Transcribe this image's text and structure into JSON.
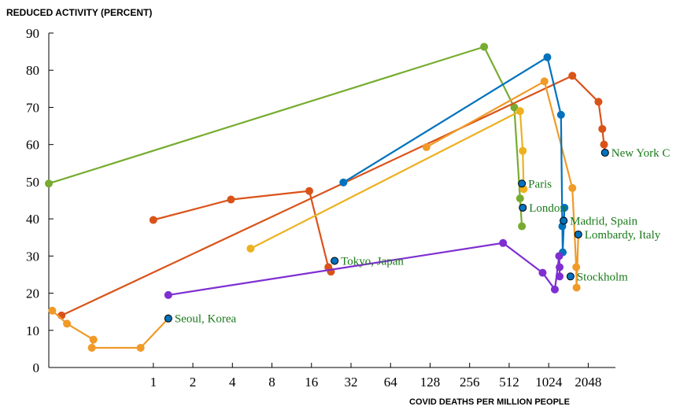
{
  "chart_data": {
    "type": "line",
    "ylabel": "REDUCED ACTIVITY (PERCENT)",
    "xlabel": "COVID DEATHS PER MILLION PEOPLE",
    "x_scale": "log2",
    "xlim": [
      0.16,
      3300
    ],
    "ylim": [
      0,
      90
    ],
    "x_ticks": [
      1,
      2,
      4,
      8,
      16,
      32,
      64,
      128,
      256,
      512,
      1024,
      2048
    ],
    "x_tick_labels": [
      "1",
      "2",
      "4",
      "8",
      "16",
      "32",
      "64",
      "128",
      "256",
      "512",
      "1024",
      "2048"
    ],
    "y_ticks": [
      0,
      10,
      20,
      30,
      40,
      50,
      60,
      70,
      80,
      90
    ],
    "y_tick_labels": [
      "0",
      "10",
      "20",
      "30",
      "40",
      "50",
      "60",
      "70",
      "80",
      "90"
    ],
    "series": [
      {
        "color": "#77ac30",
        "points": [
          [
            0.16,
            49.5
          ],
          [
            330,
            86.3
          ],
          [
            560,
            70
          ],
          [
            620,
            45.5
          ],
          [
            640,
            38
          ]
        ]
      },
      {
        "color": "#d95319",
        "points": [
          [
            1,
            39.7
          ],
          [
            3.9,
            45.2
          ],
          [
            15.4,
            47.5
          ],
          [
            21.5,
            27
          ],
          [
            22.5,
            25.8
          ]
        ]
      },
      {
        "name": "New York City",
        "color": "#d95319",
        "points": [
          [
            0.2,
            14
          ],
          [
            1550,
            78.5
          ],
          [
            2450,
            71.5
          ],
          [
            2620,
            64.2
          ],
          [
            2700,
            60
          ],
          [
            2750,
            57.8
          ]
        ]
      },
      {
        "name": "Paris",
        "color": "#edb120",
        "points": [
          [
            5.5,
            32
          ],
          [
            620,
            69
          ],
          [
            650,
            58.3
          ],
          [
            660,
            48
          ],
          [
            640,
            49.5
          ]
        ]
      },
      {
        "name": "Lombardy, Italy",
        "color": "#f09a28",
        "points": [
          [
            120,
            59.3
          ],
          [
            950,
            77
          ],
          [
            1550,
            48.3
          ],
          [
            1660,
            27
          ],
          [
            1670,
            21.5
          ],
          [
            1720,
            35.8
          ]
        ]
      },
      {
        "name": "London",
        "color": "#0072bd",
        "points": [
          [
            28,
            49.8
          ],
          [
            1000,
            83.5
          ],
          [
            1270,
            68
          ],
          [
            1300,
            38
          ],
          [
            1310,
            31
          ],
          [
            1350,
            43
          ]
        ]
      },
      {
        "name": "Madrid, Spain",
        "color": "#0072bd",
        "points": [
          [
            1330,
            39.5
          ]
        ]
      },
      {
        "name": "Stockholm",
        "color": "#7e2fd1",
        "points": [
          [
            1.3,
            19.5
          ],
          [
            460,
            33.5
          ],
          [
            920,
            25.5
          ],
          [
            1140,
            21
          ],
          [
            1230,
            30
          ],
          [
            1240,
            27
          ],
          [
            1240,
            24.5
          ]
        ]
      },
      {
        "name": "Tokyo, Japan",
        "color": "#edb120",
        "points": [
          [
            24,
            28.7
          ]
        ]
      },
      {
        "name": "Seoul, Korea",
        "color": "#f09a28",
        "points": [
          [
            0.17,
            15.3
          ],
          [
            0.22,
            11.8
          ],
          [
            0.35,
            7.5
          ],
          [
            0.34,
            5.3
          ],
          [
            0.8,
            5.3
          ],
          [
            1.3,
            13.2
          ]
        ]
      }
    ]
  },
  "annotations": [
    {
      "id": "nyc",
      "label": "New York C",
      "x": 2750,
      "y": 57.8
    },
    {
      "id": "paris",
      "label": "Paris",
      "x": 640,
      "y": 49.5
    },
    {
      "id": "london",
      "label": "London",
      "x": 650,
      "y": 43
    },
    {
      "id": "madrid",
      "label": "Madrid, Spain",
      "x": 1330,
      "y": 39.5
    },
    {
      "id": "lombardy",
      "label": "Lombardy, Italy",
      "x": 1720,
      "y": 35.8
    },
    {
      "id": "stockholm",
      "label": "Stockholm",
      "x": 1500,
      "y": 24.5
    },
    {
      "id": "tokyo",
      "label": "Tokyo, Japan",
      "x": 24,
      "y": 28.7
    },
    {
      "id": "seoul",
      "label": "Seoul, Korea",
      "x": 1.3,
      "y": 13.2
    }
  ]
}
